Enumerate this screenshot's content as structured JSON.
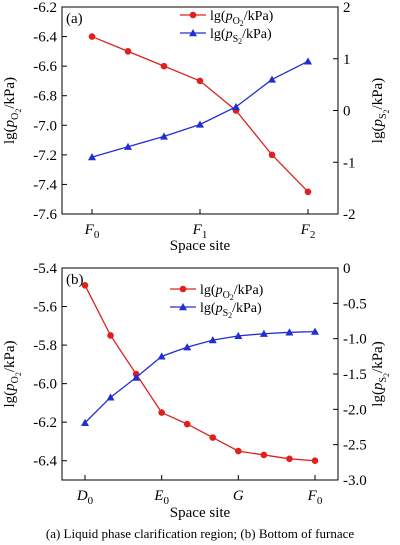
{
  "caption": "(a) Liquid phase clarification region; (b) Bottom of  furnace",
  "chart_data": [
    {
      "type": "line",
      "panel_label": "(a)",
      "xlabel": "Space site",
      "categories": [
        "F0",
        "",
        "",
        "F1",
        "",
        "",
        "F2"
      ],
      "category_ticks": [
        {
          "index": 0,
          "main": "F",
          "sub": "0"
        },
        {
          "index": 3,
          "main": "F",
          "sub": "1"
        },
        {
          "index": 6,
          "main": "F",
          "sub": "2"
        }
      ],
      "y_left": {
        "label": "lg(pO2/kPa)",
        "lim": [
          -7.6,
          -6.2
        ],
        "ticks": [
          -6.2,
          -6.4,
          -6.6,
          -6.8,
          -7.0,
          -7.2,
          -7.4,
          -7.6
        ],
        "tick_labels": [
          "-6.2",
          "-6.4",
          "-6.6",
          "-6.8",
          "-7.0",
          "-7.2",
          "-7.4",
          "-7.6"
        ]
      },
      "y_right": {
        "label": "lg(pS2/kPa)",
        "lim": [
          -2,
          2
        ],
        "ticks": [
          2,
          1,
          0,
          -1,
          -2
        ],
        "tick_labels": [
          "2",
          "1",
          "0",
          "-1",
          "-2"
        ]
      },
      "series": [
        {
          "name": "lg(pO2/kPa)",
          "name_base": "lg(p",
          "name_sub": "O",
          "name_subsub": "2",
          "name_tail": "/kPa)",
          "axis": "left",
          "color": "#e02020",
          "marker": "circle",
          "values": [
            -6.4,
            -6.5,
            -6.6,
            -6.7,
            -6.9,
            -7.2,
            -7.45
          ]
        },
        {
          "name": "lg(pS2/kPa)",
          "name_base": "lg(p",
          "name_sub": "S",
          "name_subsub": "2",
          "name_tail": "/kPa)",
          "axis": "right",
          "color": "#2030d0",
          "marker": "triangle",
          "values": [
            -0.9,
            -0.7,
            -0.5,
            -0.27,
            0.07,
            0.6,
            0.95
          ]
        }
      ],
      "legend_position": "top-right"
    },
    {
      "type": "line",
      "panel_label": "(b)",
      "xlabel": "Space site",
      "categories": [
        "D0",
        "",
        "",
        "E0",
        "",
        "",
        "G",
        "",
        "",
        "F0"
      ],
      "category_ticks": [
        {
          "index": 0,
          "main": "D",
          "sub": "0"
        },
        {
          "index": 3,
          "main": "E",
          "sub": "0"
        },
        {
          "index": 6,
          "main": "G",
          "sub": ""
        },
        {
          "index": 9,
          "main": "F",
          "sub": "0"
        }
      ],
      "y_left": {
        "label": "lg(pO2/kPa)",
        "lim": [
          -6.5,
          -5.4
        ],
        "ticks": [
          -5.4,
          -5.6,
          -5.8,
          -6.0,
          -6.2,
          -6.4
        ],
        "tick_labels": [
          "-5.4",
          "-5.6",
          "-5.8",
          "-6.0",
          "-6.2",
          "-6.4"
        ]
      },
      "y_right": {
        "label": "lg(pS2/kPa)",
        "lim": [
          -3.0,
          0
        ],
        "ticks": [
          0,
          -0.5,
          -1.0,
          -1.5,
          -2.0,
          -2.5,
          -3.0
        ],
        "tick_labels": [
          "0",
          "-0.5",
          "-1.0",
          "-1.5",
          "-2.0",
          "-2.5",
          "-3.0"
        ]
      },
      "series": [
        {
          "name": "lg(pO2/kPa)",
          "name_base": "lg(p",
          "name_sub": "O",
          "name_subsub": "2",
          "name_tail": "/kPa)",
          "axis": "left",
          "color": "#e02020",
          "marker": "circle",
          "values": [
            -5.49,
            -5.75,
            -5.95,
            -6.15,
            -6.21,
            -6.28,
            -6.35,
            -6.37,
            -6.39,
            -6.4
          ]
        },
        {
          "name": "lg(pS2/kPa)",
          "name_base": "lg(p",
          "name_sub": "S",
          "name_subsub": "2",
          "name_tail": "/kPa)",
          "axis": "right",
          "color": "#2030d0",
          "marker": "triangle",
          "values": [
            -2.19,
            -1.83,
            -1.55,
            -1.25,
            -1.12,
            -1.02,
            -0.96,
            -0.93,
            -0.91,
            -0.9
          ]
        }
      ],
      "legend_position": "top-right"
    }
  ]
}
